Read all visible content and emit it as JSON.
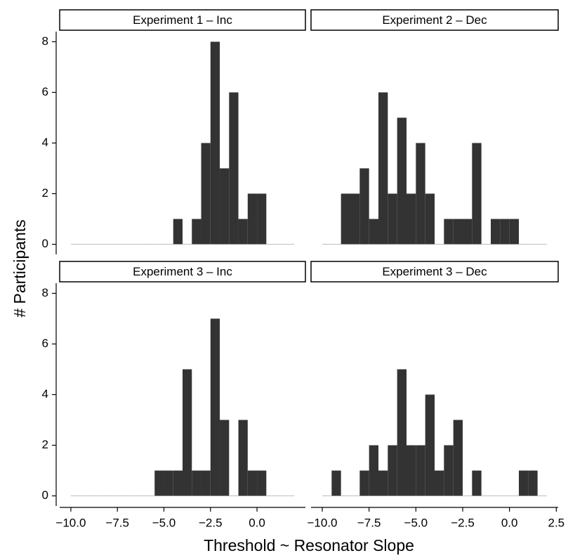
{
  "x_label": "Threshold ~ Resonator Slope",
  "y_label": "# Participants",
  "chart_data": [
    {
      "type": "histogram",
      "title": "Experiment 1 – Inc",
      "color": "#333333",
      "bins": [
        -10,
        -9.5,
        -9,
        -8.5,
        -8,
        -7.5,
        -7,
        -6.5,
        -6,
        -5.5,
        -5,
        -4.5,
        -4,
        -3.5,
        -3,
        -2.5,
        -2,
        -1.5,
        -1,
        -0.5,
        0,
        0.5,
        1,
        1.5,
        2
      ],
      "values": [
        0,
        0,
        0,
        0,
        0,
        0,
        0,
        0,
        0,
        0,
        0,
        1,
        0,
        1,
        4,
        8,
        3,
        6,
        1,
        2,
        2,
        0,
        0,
        0
      ],
      "xlim": [
        -10.6,
        2.6
      ],
      "ylim": [
        -0.4,
        8.4
      ],
      "yticks": [
        0,
        2,
        4,
        6,
        8
      ]
    },
    {
      "type": "histogram",
      "title": "Experiment 2 – Dec",
      "color": "#333333",
      "bins": [
        -10,
        -9.5,
        -9,
        -8.5,
        -8,
        -7.5,
        -7,
        -6.5,
        -6,
        -5.5,
        -5,
        -4.5,
        -4,
        -3.5,
        -3,
        -2.5,
        -2,
        -1.5,
        -1,
        -0.5,
        0,
        0.5,
        1,
        1.5,
        2
      ],
      "values": [
        0,
        0,
        2,
        2,
        3,
        1,
        6,
        2,
        5,
        2,
        4,
        2,
        0,
        1,
        1,
        1,
        4,
        0,
        1,
        1,
        1,
        0,
        0,
        0
      ],
      "xlim": [
        -10.6,
        2.6
      ],
      "ylim": [
        -0.4,
        8.4
      ]
    },
    {
      "type": "histogram",
      "title": "Experiment 3 – Inc",
      "color": "#333333",
      "bins": [
        -10,
        -9.5,
        -9,
        -8.5,
        -8,
        -7.5,
        -7,
        -6.5,
        -6,
        -5.5,
        -5,
        -4.5,
        -4,
        -3.5,
        -3,
        -2.5,
        -2,
        -1.5,
        -1,
        -0.5,
        0,
        0.5,
        1,
        1.5,
        2
      ],
      "values": [
        0,
        0,
        0,
        0,
        0,
        0,
        0,
        0,
        0,
        1,
        1,
        1,
        5,
        1,
        1,
        7,
        3,
        0,
        3,
        1,
        1,
        0,
        0,
        0
      ],
      "xlim": [
        -10.6,
        2.6
      ],
      "ylim": [
        -0.4,
        8.4
      ],
      "yticks": [
        0,
        2,
        4,
        6,
        8
      ],
      "xticks": [
        {
          "value": -10,
          "label": "−10.0"
        },
        {
          "value": -7.5,
          "label": "−7.5"
        },
        {
          "value": -5,
          "label": "−5.0"
        },
        {
          "value": -2.5,
          "label": "−2.5"
        },
        {
          "value": 0,
          "label": "0.0"
        }
      ]
    },
    {
      "type": "histogram",
      "title": "Experiment 3 – Dec",
      "color": "#333333",
      "bins": [
        -10,
        -9.5,
        -9,
        -8.5,
        -8,
        -7.5,
        -7,
        -6.5,
        -6,
        -5.5,
        -5,
        -4.5,
        -4,
        -3.5,
        -3,
        -2.5,
        -2,
        -1.5,
        -1,
        -0.5,
        0,
        0.5,
        1,
        1.5,
        2
      ],
      "values": [
        0,
        1,
        0,
        0,
        1,
        2,
        1,
        2,
        5,
        2,
        2,
        4,
        1,
        2,
        3,
        0,
        1,
        0,
        0,
        0,
        0,
        1,
        1,
        0
      ],
      "xlim": [
        -10.6,
        2.6
      ],
      "ylim": [
        -0.4,
        8.4
      ],
      "xticks": [
        {
          "value": -10,
          "label": "−10.0"
        },
        {
          "value": -7.5,
          "label": "−7.5"
        },
        {
          "value": -5,
          "label": "−5.0"
        },
        {
          "value": -2.5,
          "label": "−2.5"
        },
        {
          "value": 0,
          "label": "0.0"
        },
        {
          "value": 2.5,
          "label": "2.5"
        }
      ]
    }
  ]
}
